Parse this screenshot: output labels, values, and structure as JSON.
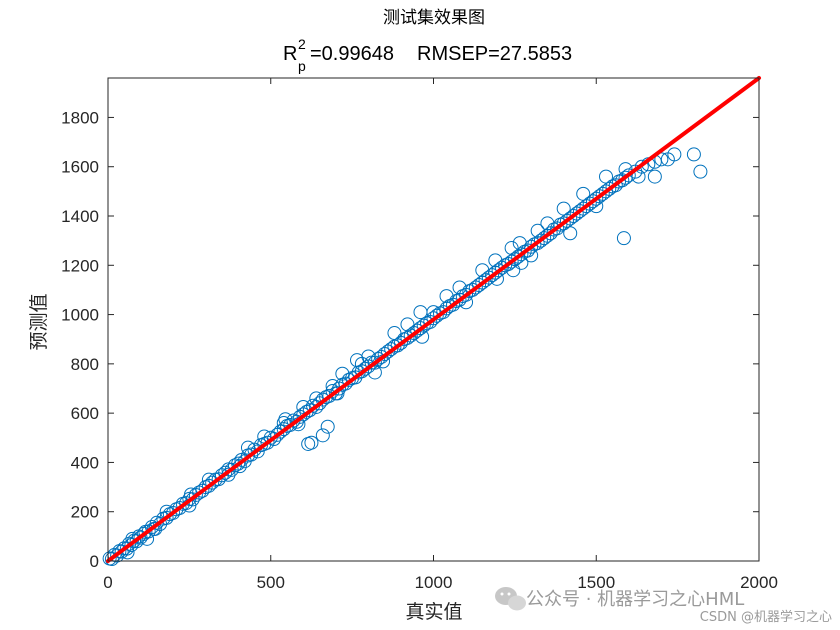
{
  "chart_data": {
    "type": "scatter",
    "title": "测试集效果图",
    "subtitle": {
      "r_letter": "R",
      "r_sup": "2",
      "r_sub": "p",
      "r2_text": "=0.99648",
      "rmsep_text": "RMSEP=27.5853"
    },
    "xlabel": "真实值",
    "ylabel": "预测值",
    "xlim": [
      0,
      2000
    ],
    "ylim": [
      0,
      1960
    ],
    "xticks": [
      0,
      500,
      1000,
      1500,
      2000
    ],
    "yticks": [
      0,
      200,
      400,
      600,
      800,
      1000,
      1200,
      1400,
      1600,
      1800
    ],
    "grid": false,
    "marker_color": "#0072bd",
    "line_color": "#ff0000",
    "fit_line": {
      "x": [
        0,
        2000
      ],
      "y": [
        0,
        1960
      ]
    },
    "points": [
      [
        5,
        10
      ],
      [
        12,
        8
      ],
      [
        20,
        25
      ],
      [
        28,
        22
      ],
      [
        35,
        40
      ],
      [
        42,
        38
      ],
      [
        50,
        52
      ],
      [
        58,
        50
      ],
      [
        65,
        70
      ],
      [
        72,
        65
      ],
      [
        80,
        82
      ],
      [
        88,
        80
      ],
      [
        95,
        100
      ],
      [
        100,
        95
      ],
      [
        110,
        110
      ],
      [
        115,
        118
      ],
      [
        125,
        120
      ],
      [
        135,
        138
      ],
      [
        140,
        130
      ],
      [
        150,
        155
      ],
      [
        160,
        150
      ],
      [
        170,
        172
      ],
      [
        180,
        175
      ],
      [
        190,
        190
      ],
      [
        200,
        195
      ],
      [
        210,
        210
      ],
      [
        220,
        215
      ],
      [
        230,
        232
      ],
      [
        240,
        235
      ],
      [
        250,
        252
      ],
      [
        260,
        250
      ],
      [
        270,
        268
      ],
      [
        280,
        278
      ],
      [
        290,
        285
      ],
      [
        300,
        300
      ],
      [
        310,
        305
      ],
      [
        320,
        318
      ],
      [
        330,
        330
      ],
      [
        340,
        332
      ],
      [
        350,
        348
      ],
      [
        360,
        358
      ],
      [
        370,
        372
      ],
      [
        380,
        370
      ],
      [
        390,
        388
      ],
      [
        400,
        395
      ],
      [
        410,
        410
      ],
      [
        420,
        405
      ],
      [
        430,
        428
      ],
      [
        440,
        432
      ],
      [
        450,
        452
      ],
      [
        460,
        445
      ],
      [
        470,
        470
      ],
      [
        480,
        475
      ],
      [
        490,
        480
      ],
      [
        500,
        500
      ],
      [
        510,
        495
      ],
      [
        520,
        512
      ],
      [
        530,
        525
      ],
      [
        540,
        535
      ],
      [
        550,
        548
      ],
      [
        560,
        552
      ],
      [
        570,
        570
      ],
      [
        580,
        565
      ],
      [
        590,
        585
      ],
      [
        600,
        595
      ],
      [
        610,
        605
      ],
      [
        620,
        612
      ],
      [
        630,
        630
      ],
      [
        640,
        625
      ],
      [
        650,
        640
      ],
      [
        660,
        655
      ],
      [
        670,
        665
      ],
      [
        680,
        670
      ],
      [
        690,
        690
      ],
      [
        700,
        680
      ],
      [
        710,
        700
      ],
      [
        720,
        715
      ],
      [
        730,
        720
      ],
      [
        740,
        735
      ],
      [
        750,
        742
      ],
      [
        760,
        745
      ],
      [
        770,
        765
      ],
      [
        780,
        770
      ],
      [
        790,
        780
      ],
      [
        800,
        790
      ],
      [
        810,
        805
      ],
      [
        820,
        805
      ],
      [
        830,
        820
      ],
      [
        840,
        828
      ],
      [
        850,
        840
      ],
      [
        860,
        850
      ],
      [
        870,
        860
      ],
      [
        880,
        870
      ],
      [
        890,
        875
      ],
      [
        900,
        885
      ],
      [
        910,
        900
      ],
      [
        920,
        905
      ],
      [
        930,
        915
      ],
      [
        940,
        925
      ],
      [
        950,
        935
      ],
      [
        960,
        945
      ],
      [
        970,
        955
      ],
      [
        980,
        965
      ],
      [
        990,
        970
      ],
      [
        1000,
        985
      ],
      [
        1010,
        995
      ],
      [
        1020,
        1005
      ],
      [
        1030,
        1010
      ],
      [
        1040,
        1025
      ],
      [
        1050,
        1035
      ],
      [
        1060,
        1040
      ],
      [
        1070,
        1055
      ],
      [
        1080,
        1060
      ],
      [
        1090,
        1075
      ],
      [
        1100,
        1080
      ],
      [
        1110,
        1095
      ],
      [
        1120,
        1100
      ],
      [
        1130,
        1110
      ],
      [
        1140,
        1120
      ],
      [
        1150,
        1130
      ],
      [
        1160,
        1140
      ],
      [
        1170,
        1150
      ],
      [
        1180,
        1160
      ],
      [
        1190,
        1170
      ],
      [
        1200,
        1180
      ],
      [
        1210,
        1190
      ],
      [
        1220,
        1200
      ],
      [
        1230,
        1205
      ],
      [
        1240,
        1215
      ],
      [
        1250,
        1225
      ],
      [
        1260,
        1235
      ],
      [
        1270,
        1245
      ],
      [
        1280,
        1255
      ],
      [
        1290,
        1260
      ],
      [
        1300,
        1275
      ],
      [
        1310,
        1285
      ],
      [
        1320,
        1290
      ],
      [
        1330,
        1300
      ],
      [
        1340,
        1310
      ],
      [
        1350,
        1320
      ],
      [
        1360,
        1330
      ],
      [
        1370,
        1345
      ],
      [
        1380,
        1350
      ],
      [
        1390,
        1365
      ],
      [
        1400,
        1370
      ],
      [
        1410,
        1380
      ],
      [
        1420,
        1390
      ],
      [
        1430,
        1400
      ],
      [
        1440,
        1410
      ],
      [
        1450,
        1420
      ],
      [
        1460,
        1430
      ],
      [
        1470,
        1440
      ],
      [
        1480,
        1450
      ],
      [
        1490,
        1460
      ],
      [
        1500,
        1470
      ],
      [
        1510,
        1480
      ],
      [
        1520,
        1490
      ],
      [
        1530,
        1500
      ],
      [
        1540,
        1510
      ],
      [
        1550,
        1520
      ],
      [
        1560,
        1525
      ],
      [
        1570,
        1540
      ],
      [
        1580,
        1545
      ],
      [
        1590,
        1555
      ],
      [
        1600,
        1565
      ],
      [
        1620,
        1580
      ],
      [
        1640,
        1600
      ],
      [
        1660,
        1610
      ],
      [
        1680,
        1620
      ],
      [
        1700,
        1630
      ],
      [
        60,
        35
      ],
      [
        120,
        90
      ],
      [
        180,
        200
      ],
      [
        250,
        225
      ],
      [
        310,
        330
      ],
      [
        370,
        350
      ],
      [
        430,
        460
      ],
      [
        480,
        505
      ],
      [
        540,
        560
      ],
      [
        600,
        625
      ],
      [
        615,
        475
      ],
      [
        625,
        480
      ],
      [
        660,
        510
      ],
      [
        675,
        545
      ],
      [
        640,
        660
      ],
      [
        690,
        710
      ],
      [
        720,
        760
      ],
      [
        765,
        815
      ],
      [
        800,
        830
      ],
      [
        845,
        810
      ],
      [
        880,
        925
      ],
      [
        920,
        960
      ],
      [
        960,
        1010
      ],
      [
        1000,
        1010
      ],
      [
        1040,
        1075
      ],
      [
        1080,
        1110
      ],
      [
        1100,
        1050
      ],
      [
        1150,
        1180
      ],
      [
        1190,
        1220
      ],
      [
        1240,
        1270
      ],
      [
        1265,
        1290
      ],
      [
        1300,
        1240
      ],
      [
        1350,
        1370
      ],
      [
        1400,
        1430
      ],
      [
        1420,
        1330
      ],
      [
        1460,
        1490
      ],
      [
        1500,
        1440
      ],
      [
        1530,
        1560
      ],
      [
        1585,
        1310
      ],
      [
        1590,
        1590
      ],
      [
        1630,
        1560
      ],
      [
        1680,
        1560
      ],
      [
        1720,
        1630
      ],
      [
        1740,
        1650
      ],
      [
        1800,
        1650
      ],
      [
        1820,
        1580
      ],
      [
        705,
        680
      ],
      [
        585,
        555
      ],
      [
        820,
        765
      ],
      [
        965,
        910
      ],
      [
        1320,
        1340
      ],
      [
        1270,
        1210
      ],
      [
        780,
        800
      ],
      [
        545,
        575
      ],
      [
        405,
        385
      ],
      [
        255,
        270
      ],
      [
        145,
        130
      ],
      [
        75,
        90
      ],
      [
        1195,
        1145
      ],
      [
        1245,
        1180
      ]
    ]
  },
  "watermark": {
    "main": "公众号 · 机器学习之心HML",
    "credit": "CSDN @机器学习之心"
  }
}
